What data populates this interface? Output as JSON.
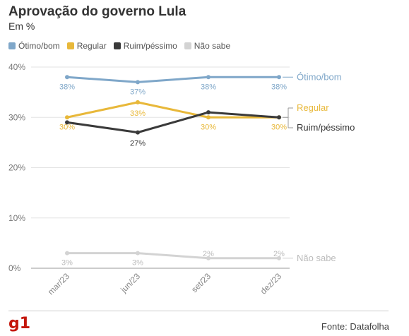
{
  "title": "Aprovação do governo Lula",
  "subtitle": "Em %",
  "source": "Fonte: Datafolha",
  "logo": "g1",
  "chart_data": {
    "type": "line",
    "x": [
      "mar/23",
      "jun/23",
      "set/23",
      "dez/23"
    ],
    "yticks": [
      "0%",
      "10%",
      "20%",
      "30%",
      "40%"
    ],
    "ylim": [
      0,
      40
    ],
    "grid": true,
    "legend": "top-left",
    "series": [
      {
        "name": "Ótimo/bom",
        "values": [
          38,
          37,
          38,
          38
        ],
        "labels": [
          "38%",
          "37%",
          "38%",
          "38%"
        ],
        "color": "#7fa7c9",
        "end_label": "Ótimo/bom"
      },
      {
        "name": "Regular",
        "values": [
          30,
          33,
          30,
          30
        ],
        "labels": [
          "30%",
          "33%",
          "30%",
          "30%"
        ],
        "color": "#e8b83a",
        "end_label": "Regular"
      },
      {
        "name": "Ruim/péssimo",
        "values": [
          29,
          27,
          31,
          30
        ],
        "labels": [
          "",
          "27%",
          "",
          ""
        ],
        "color": "#3a3a3a",
        "end_label": "Ruim/péssimo"
      },
      {
        "name": "Não sabe",
        "values": [
          3,
          3,
          2,
          2
        ],
        "labels": [
          "3%",
          "3%",
          "2%",
          "2%"
        ],
        "color": "#d3d3d3",
        "end_label": "Não sabe"
      }
    ]
  }
}
